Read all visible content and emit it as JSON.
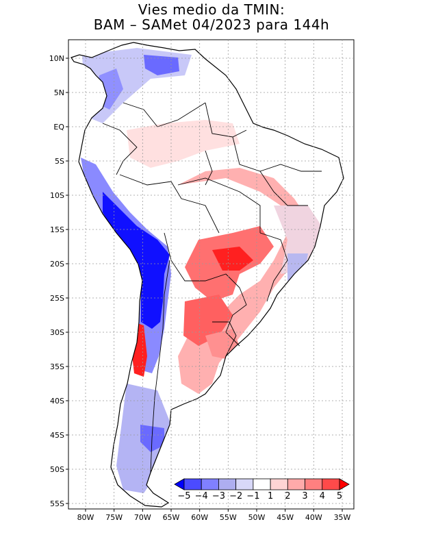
{
  "title": {
    "line1": "Vies medio da TMIN:",
    "line2": "BAM – SAMet 04/2023  para 144h"
  },
  "map": {
    "region": "South America",
    "variable": "TMIN bias",
    "lat_range": [
      -56,
      13
    ],
    "lon_range": [
      -85,
      -34
    ],
    "lat_ticks": [
      {
        "value": 10,
        "label": "10N"
      },
      {
        "value": 5,
        "label": "5N"
      },
      {
        "value": 0,
        "label": "EQ"
      },
      {
        "value": -5,
        "label": "5S"
      },
      {
        "value": -10,
        "label": "10S"
      },
      {
        "value": -15,
        "label": "15S"
      },
      {
        "value": -20,
        "label": "20S"
      },
      {
        "value": -25,
        "label": "25S"
      },
      {
        "value": -30,
        "label": "30S"
      },
      {
        "value": -35,
        "label": "35S"
      },
      {
        "value": -40,
        "label": "40S"
      },
      {
        "value": -45,
        "label": "45S"
      },
      {
        "value": -50,
        "label": "50S"
      },
      {
        "value": -55,
        "label": "55S"
      }
    ],
    "lon_ticks": [
      {
        "value": -80,
        "label": "80W"
      },
      {
        "value": -75,
        "label": "75W"
      },
      {
        "value": -70,
        "label": "70W"
      },
      {
        "value": -65,
        "label": "65W"
      },
      {
        "value": -60,
        "label": "60W"
      },
      {
        "value": -55,
        "label": "55W"
      },
      {
        "value": -50,
        "label": "50W"
      },
      {
        "value": -45,
        "label": "45W"
      },
      {
        "value": -40,
        "label": "40W"
      },
      {
        "value": -35,
        "label": "35W"
      }
    ]
  },
  "colorbar": {
    "labels": [
      "−5",
      "−4",
      "−3",
      "−2",
      "−1",
      "1",
      "2",
      "3",
      "4",
      "5"
    ],
    "colors": [
      "#0000ff",
      "#4b4bff",
      "#8080ff",
      "#aeaef0",
      "#d8d8f8",
      "#ffffff",
      "#ffd4d4",
      "#ffaaaa",
      "#ff8080",
      "#ff4a4a",
      "#ff0000"
    ]
  },
  "colors": {
    "strong_negative": "#1010ff",
    "negative": "#8a8aff",
    "weak_negative": "#d6d6f6",
    "weak_positive": "#ffd6d6",
    "positive": "#ff9090",
    "strong_positive": "#ff2020",
    "coast": "#000000",
    "grid": "#999999"
  }
}
